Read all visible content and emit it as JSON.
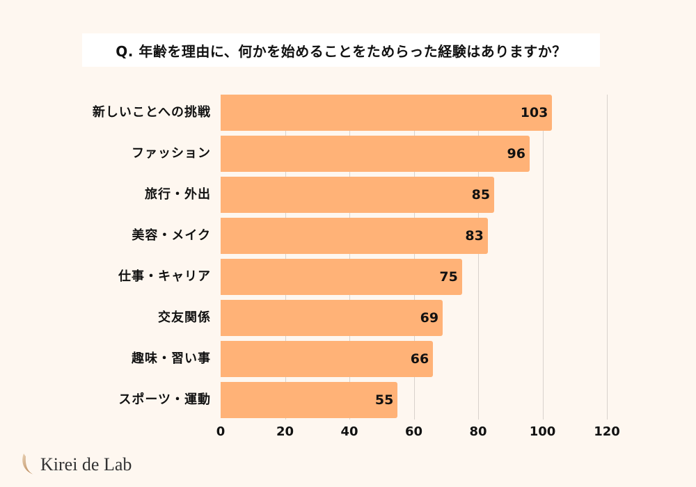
{
  "header": {
    "title": "Q. 年齢を理由に、何かを始めることをためらった経験はありますか？"
  },
  "logo": {
    "text": "Kirei de Lab",
    "icon": "feather-mark-icon"
  },
  "colors": {
    "bar": "#FFB277",
    "background": "#FEF7F0",
    "grid": "#D8D2CC",
    "title_box": "#FFFFFF"
  },
  "axis": {
    "ticks": [
      "0",
      "20",
      "40",
      "60",
      "80",
      "100",
      "120"
    ]
  },
  "chart_data": {
    "type": "bar",
    "orientation": "horizontal",
    "title": "Q. 年齢を理由に、何かを始めることをためらった経験はありますか？",
    "categories": [
      "新しいことへの挑戦",
      "ファッション",
      "旅行・外出",
      "美容・メイク",
      "仕事・キャリア",
      "交友関係",
      "趣味・習い事",
      "スポーツ・運動"
    ],
    "values": [
      103,
      96,
      85,
      83,
      75,
      69,
      66,
      55
    ],
    "xlabel": "",
    "ylabel": "",
    "xlim": [
      0,
      120
    ],
    "xticks": [
      0,
      20,
      40,
      60,
      80,
      100,
      120
    ],
    "grid": true,
    "data_labels": true,
    "legend": null
  }
}
